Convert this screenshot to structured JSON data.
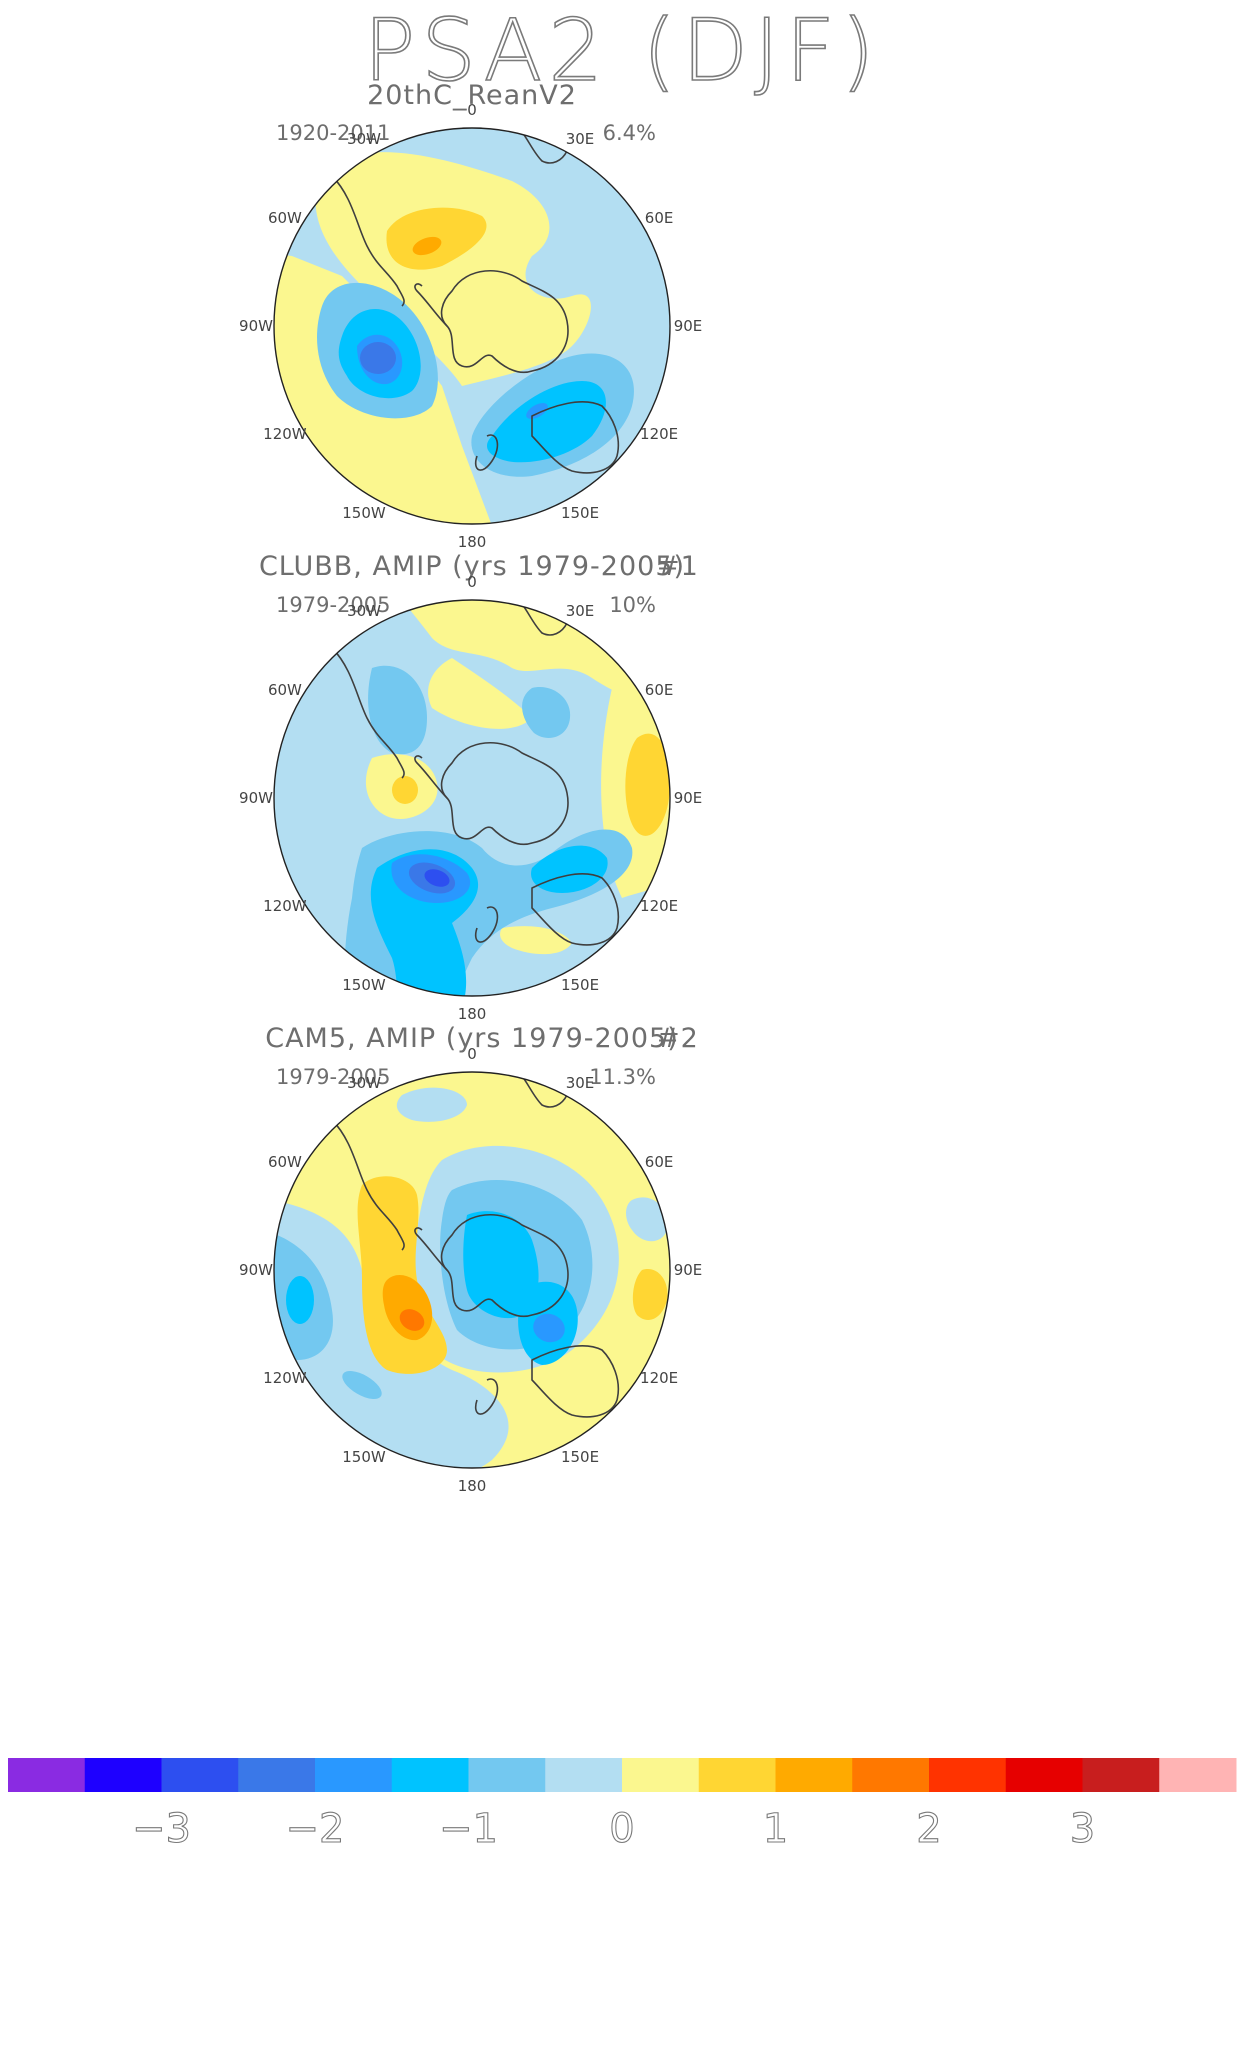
{
  "title": "PSA2 (DJF)",
  "panels": [
    {
      "title": "20thC_ReanV2",
      "years": "1920-2011",
      "variance": "6.4%",
      "number": "",
      "field": "reanalysis"
    },
    {
      "title": "CLUBB, AMIP (yrs 1979-2005)",
      "years": "1979-2005",
      "variance": "10%",
      "number": "#1",
      "field": "clubb"
    },
    {
      "title": "CAM5, AMIP (yrs 1979-2005)",
      "years": "1979-2005",
      "variance": "11.3%",
      "number": "#2",
      "field": "cam5"
    }
  ],
  "longitude_labels": [
    "0",
    "30E",
    "60E",
    "90E",
    "120E",
    "150E",
    "180",
    "150W",
    "120W",
    "90W",
    "60W",
    "30W"
  ],
  "colorbar": {
    "colors": [
      "#8a2be2",
      "#1e00ff",
      "#2d4ff0",
      "#3a78e8",
      "#2998ff",
      "#00c3ff",
      "#73c8f0",
      "#b3def2",
      "#fbf78f",
      "#ffd633",
      "#ffaa00",
      "#ff7800",
      "#ff3300",
      "#e60000",
      "#c81e1e",
      "#ffb4b4"
    ],
    "labels": [
      "−3",
      "−2",
      "−1",
      "0",
      "1",
      "2",
      "3"
    ]
  }
}
